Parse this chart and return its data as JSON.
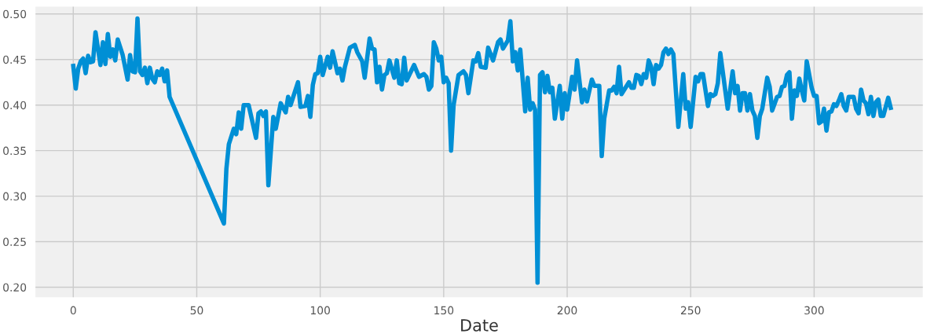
{
  "chart_data": {
    "type": "line",
    "xlabel": "Date",
    "xlim": [
      -15.3,
      344
    ],
    "ylim": [
      0.189,
      0.508
    ],
    "xticks": [
      0,
      50,
      100,
      150,
      200,
      250,
      300
    ],
    "yticks": [
      {
        "value": 0.2,
        "label": "0.20"
      },
      {
        "value": 0.25,
        "label": "0.25"
      },
      {
        "value": 0.3,
        "label": "0.30"
      },
      {
        "value": 0.35,
        "label": "0.35"
      },
      {
        "value": 0.4,
        "label": "0.40"
      },
      {
        "value": 0.45,
        "label": "0.45"
      },
      {
        "value": 0.5,
        "label": "0.50"
      }
    ],
    "grid": true,
    "line_style": "solid",
    "marker": "none",
    "x": [
      0,
      1,
      2,
      3,
      4,
      5,
      6,
      7,
      8,
      9,
      11,
      12,
      13,
      14,
      15,
      16,
      17,
      18,
      20,
      22,
      23,
      24,
      25,
      26,
      27,
      28,
      29,
      30,
      31,
      32,
      33,
      34,
      35,
      36,
      37,
      38,
      39,
      61,
      62,
      63,
      65,
      66,
      67,
      68,
      69,
      71,
      74,
      75,
      76,
      77,
      78,
      79,
      81,
      82,
      84,
      86,
      87,
      88,
      91,
      92,
      94,
      95,
      96,
      97,
      98,
      99,
      100,
      101,
      103,
      104,
      105,
      106,
      107,
      108,
      109,
      110,
      112,
      114,
      115,
      117,
      118,
      120,
      121,
      122,
      123,
      124,
      125,
      126,
      127,
      128,
      130,
      131,
      132,
      133,
      134,
      135,
      138,
      140,
      142,
      143,
      144,
      145,
      146,
      147,
      148,
      149,
      150,
      151,
      152,
      153,
      154,
      156,
      158,
      159,
      160,
      162,
      163,
      164,
      165,
      167,
      168,
      170,
      172,
      173,
      174,
      176,
      177,
      178,
      179,
      180,
      181,
      183,
      184,
      185,
      186,
      187,
      188,
      189,
      190,
      191,
      192,
      193,
      194,
      195,
      197,
      198,
      199,
      200,
      202,
      203,
      204,
      206,
      207,
      208,
      210,
      211,
      213,
      214,
      215,
      217,
      218,
      219,
      220,
      221,
      222,
      225,
      226,
      227,
      228,
      229,
      230,
      231,
      232,
      233,
      234,
      235,
      236,
      237,
      238,
      239,
      240,
      241,
      242,
      243,
      245,
      247,
      248,
      249,
      250,
      252,
      253,
      254,
      255,
      257,
      258,
      259,
      260,
      261,
      262,
      265,
      267,
      268,
      269,
      270,
      271,
      272,
      273,
      274,
      275,
      276,
      277,
      278,
      279,
      281,
      282,
      283,
      285,
      286,
      287,
      288,
      289,
      290,
      291,
      292,
      293,
      294,
      295,
      296,
      297,
      299,
      300,
      301,
      302,
      303,
      304,
      305,
      306,
      307,
      308,
      309,
      310,
      311,
      312,
      313,
      314,
      315,
      316,
      317,
      318,
      319,
      320,
      321,
      322,
      323,
      324,
      325,
      326,
      327,
      328,
      330,
      331
    ],
    "series": [
      {
        "color": "#008fd5",
        "values": [
          0.443,
          0.418,
          0.44,
          0.448,
          0.451,
          0.435,
          0.454,
          0.447,
          0.448,
          0.48,
          0.444,
          0.469,
          0.445,
          0.478,
          0.453,
          0.461,
          0.449,
          0.472,
          0.455,
          0.428,
          0.455,
          0.437,
          0.436,
          0.495,
          0.437,
          0.433,
          0.441,
          0.424,
          0.441,
          0.429,
          0.425,
          0.437,
          0.433,
          0.44,
          0.426,
          0.438,
          0.409,
          0.27,
          0.33,
          0.357,
          0.374,
          0.368,
          0.392,
          0.374,
          0.4,
          0.4,
          0.364,
          0.391,
          0.393,
          0.388,
          0.393,
          0.312,
          0.387,
          0.374,
          0.402,
          0.392,
          0.409,
          0.4,
          0.425,
          0.398,
          0.399,
          0.41,
          0.387,
          0.422,
          0.434,
          0.435,
          0.453,
          0.433,
          0.453,
          0.441,
          0.459,
          0.447,
          0.435,
          0.44,
          0.427,
          0.442,
          0.463,
          0.466,
          0.458,
          0.448,
          0.43,
          0.473,
          0.462,
          0.461,
          0.425,
          0.442,
          0.417,
          0.433,
          0.435,
          0.449,
          0.43,
          0.449,
          0.424,
          0.423,
          0.452,
          0.427,
          0.444,
          0.431,
          0.434,
          0.431,
          0.417,
          0.421,
          0.469,
          0.462,
          0.449,
          0.453,
          0.425,
          0.43,
          0.424,
          0.35,
          0.4,
          0.433,
          0.437,
          0.433,
          0.413,
          0.449,
          0.448,
          0.457,
          0.442,
          0.441,
          0.463,
          0.449,
          0.469,
          0.472,
          0.462,
          0.471,
          0.492,
          0.448,
          0.458,
          0.438,
          0.461,
          0.393,
          0.43,
          0.395,
          0.402,
          0.395,
          0.205,
          0.433,
          0.436,
          0.414,
          0.432,
          0.414,
          0.419,
          0.385,
          0.421,
          0.385,
          0.413,
          0.395,
          0.431,
          0.417,
          0.449,
          0.403,
          0.417,
          0.404,
          0.428,
          0.421,
          0.421,
          0.344,
          0.385,
          0.416,
          0.416,
          0.42,
          0.413,
          0.442,
          0.412,
          0.425,
          0.419,
          0.419,
          0.433,
          0.432,
          0.423,
          0.434,
          0.43,
          0.449,
          0.442,
          0.423,
          0.444,
          0.44,
          0.444,
          0.458,
          0.462,
          0.456,
          0.461,
          0.456,
          0.376,
          0.434,
          0.396,
          0.403,
          0.376,
          0.431,
          0.426,
          0.434,
          0.434,
          0.399,
          0.412,
          0.41,
          0.412,
          0.424,
          0.457,
          0.396,
          0.437,
          0.413,
          0.421,
          0.394,
          0.413,
          0.413,
          0.394,
          0.412,
          0.394,
          0.388,
          0.364,
          0.388,
          0.396,
          0.43,
          0.42,
          0.394,
          0.409,
          0.41,
          0.42,
          0.421,
          0.433,
          0.436,
          0.385,
          0.416,
          0.41,
          0.429,
          0.416,
          0.405,
          0.448,
          0.419,
          0.41,
          0.41,
          0.38,
          0.382,
          0.396,
          0.372,
          0.392,
          0.393,
          0.401,
          0.399,
          0.405,
          0.412,
          0.399,
          0.394,
          0.409,
          0.409,
          0.409,
          0.396,
          0.391,
          0.417,
          0.405,
          0.402,
          0.39,
          0.409,
          0.388,
          0.403,
          0.406,
          0.388,
          0.388,
          0.408,
          0.397
        ]
      }
    ]
  }
}
